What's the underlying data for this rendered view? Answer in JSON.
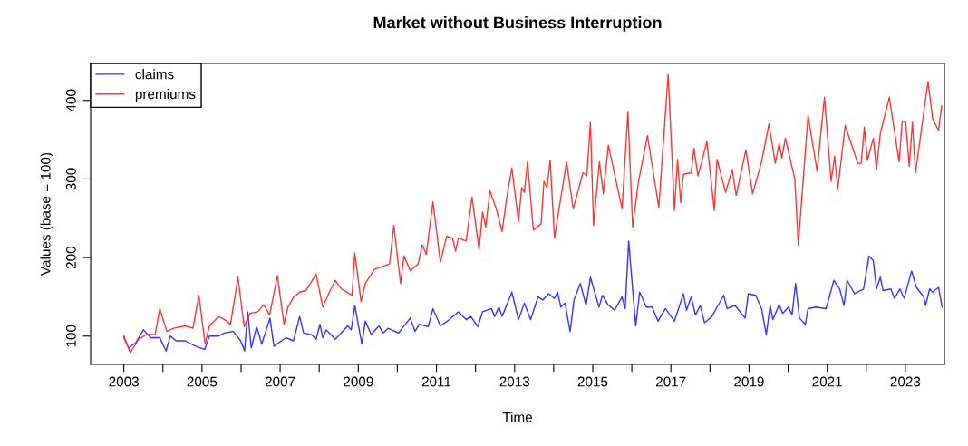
{
  "chart_data": {
    "type": "line",
    "title": "Market without Business Interruption",
    "xlabel": "Time",
    "ylabel": "Values (base = 100)",
    "xlim": [
      2002.15,
      2024.0
    ],
    "ylim": [
      64,
      447
    ],
    "xticks": [
      2003,
      {
        "value": 2004,
        "label": null
      },
      2005,
      {
        "value": 2006,
        "label": null
      },
      2007,
      {
        "value": 2008,
        "label": null
      },
      2009,
      {
        "value": 2010,
        "label": null
      },
      2011,
      {
        "value": 2012,
        "label": null
      },
      2013,
      {
        "value": 2014,
        "label": null
      },
      2015,
      {
        "value": 2016,
        "label": null
      },
      2017,
      {
        "value": 2018,
        "label": null
      },
      2019,
      {
        "value": 2020,
        "label": null
      },
      2021,
      {
        "value": 2022,
        "label": null
      },
      2023
    ],
    "yticks": [
      100,
      200,
      300,
      400
    ],
    "grid": false,
    "legend": "top left",
    "marker": "none",
    "line_style": "solid",
    "series": [
      {
        "name": "claims",
        "color": "#3333ff",
        "x": [
          2003.0,
          2003.12,
          2003.31,
          2003.5,
          2003.69,
          2003.92,
          2004.08,
          2004.19,
          2004.34,
          2004.57,
          2004.8,
          2005.07,
          2005.19,
          2005.42,
          2005.57,
          2005.8,
          2005.99,
          2006.09,
          2006.17,
          2006.26,
          2006.4,
          2006.53,
          2006.74,
          2006.84,
          2007.03,
          2007.15,
          2007.34,
          2007.5,
          2007.6,
          2007.8,
          2007.92,
          2008.02,
          2008.09,
          2008.18,
          2008.41,
          2008.73,
          2008.82,
          2008.91,
          2009.09,
          2009.18,
          2009.33,
          2009.53,
          2009.64,
          2009.76,
          2010.03,
          2010.33,
          2010.45,
          2010.56,
          2010.79,
          2010.91,
          2011.1,
          2011.33,
          2011.56,
          2011.76,
          2011.88,
          2012.06,
          2012.18,
          2012.41,
          2012.49,
          2012.6,
          2012.68,
          2012.93,
          2013.1,
          2013.25,
          2013.41,
          2013.6,
          2013.72,
          2013.87,
          2014.02,
          2014.1,
          2014.18,
          2014.29,
          2014.42,
          2014.52,
          2014.68,
          2014.83,
          2014.94,
          2015.06,
          2015.16,
          2015.25,
          2015.39,
          2015.56,
          2015.75,
          2015.83,
          2015.92,
          2016.01,
          2016.1,
          2016.2,
          2016.37,
          2016.52,
          2016.67,
          2016.86,
          2017.09,
          2017.32,
          2017.4,
          2017.52,
          2017.63,
          2017.75,
          2017.86,
          2018.05,
          2018.18,
          2018.35,
          2018.44,
          2018.64,
          2018.9,
          2018.98,
          2019.17,
          2019.32,
          2019.44,
          2019.54,
          2019.61,
          2019.77,
          2019.86,
          2020.01,
          2020.1,
          2020.19,
          2020.29,
          2020.44,
          2020.51,
          2020.71,
          2020.97,
          2021.17,
          2021.32,
          2021.43,
          2021.51,
          2021.7,
          2021.93,
          2022.07,
          2022.18,
          2022.26,
          2022.36,
          2022.43,
          2022.63,
          2022.72,
          2022.86,
          2022.97,
          2023.16,
          2023.28,
          2023.47,
          2023.52,
          2023.62,
          2023.7,
          2023.85,
          2023.94
        ],
        "values": [
          100,
          85,
          92,
          108,
          98,
          98,
          81,
          100,
          94,
          94,
          88,
          83,
          100,
          100,
          104,
          106,
          94,
          81,
          131,
          85,
          112,
          90,
          123,
          87,
          94,
          98,
          94,
          125,
          104,
          102,
          96,
          115,
          98,
          108,
          96,
          113,
          108,
          139,
          90,
          119,
          102,
          113,
          104,
          110,
          104,
          123,
          106,
          115,
          112,
          135,
          113,
          121,
          131,
          121,
          125,
          112,
          131,
          135,
          125,
          137,
          125,
          156,
          121,
          142,
          121,
          150,
          146,
          154,
          148,
          156,
          137,
          142,
          106,
          146,
          167,
          139,
          175,
          154,
          137,
          152,
          140,
          133,
          150,
          135,
          221,
          166,
          113,
          156,
          137,
          137,
          119,
          135,
          119,
          154,
          133,
          150,
          127,
          139,
          117,
          125,
          137,
          152,
          135,
          139,
          123,
          154,
          152,
          135,
          102,
          139,
          121,
          140,
          129,
          137,
          127,
          167,
          123,
          115,
          135,
          137,
          135,
          171,
          160,
          139,
          171,
          154,
          160,
          202,
          196,
          160,
          175,
          158,
          160,
          148,
          160,
          148,
          183,
          162,
          150,
          139,
          160,
          156,
          162,
          137
        ]
      },
      {
        "name": "premiums",
        "color": "#ff3333",
        "x": [
          2003.0,
          2003.17,
          2003.38,
          2003.57,
          2003.8,
          2003.92,
          2004.1,
          2004.27,
          2004.57,
          2004.77,
          2004.92,
          2005.08,
          2005.19,
          2005.31,
          2005.42,
          2005.58,
          2005.73,
          2005.92,
          2006.08,
          2006.23,
          2006.43,
          2006.58,
          2006.73,
          2006.93,
          2007.1,
          2007.2,
          2007.35,
          2007.5,
          2007.66,
          2007.92,
          2008.09,
          2008.26,
          2008.41,
          2008.57,
          2008.84,
          2008.91,
          2009.07,
          2009.18,
          2009.41,
          2009.64,
          2009.8,
          2009.91,
          2010.08,
          2010.17,
          2010.33,
          2010.53,
          2010.64,
          2010.74,
          2010.91,
          2011.1,
          2011.26,
          2011.41,
          2011.49,
          2011.56,
          2011.76,
          2011.91,
          2012.09,
          2012.18,
          2012.26,
          2012.37,
          2012.53,
          2012.68,
          2012.8,
          2012.93,
          2013.1,
          2013.18,
          2013.25,
          2013.33,
          2013.48,
          2013.68,
          2013.75,
          2013.83,
          2013.91,
          2014.02,
          2014.33,
          2014.5,
          2014.75,
          2014.85,
          2014.94,
          2015.02,
          2015.17,
          2015.27,
          2015.4,
          2015.75,
          2015.9,
          2016.02,
          2016.17,
          2016.4,
          2016.55,
          2016.69,
          2016.93,
          2017.09,
          2017.17,
          2017.25,
          2017.32,
          2017.52,
          2017.59,
          2017.69,
          2017.79,
          2017.92,
          2018.11,
          2018.18,
          2018.4,
          2018.57,
          2018.67,
          2018.92,
          2019.09,
          2019.32,
          2019.51,
          2019.67,
          2019.77,
          2019.84,
          2019.93,
          2020.17,
          2020.26,
          2020.51,
          2020.74,
          2020.93,
          2021.1,
          2021.19,
          2021.27,
          2021.46,
          2021.78,
          2021.87,
          2021.95,
          2022.03,
          2022.18,
          2022.26,
          2022.36,
          2022.59,
          2022.84,
          2022.92,
          2023.01,
          2023.1,
          2023.18,
          2023.26,
          2023.58,
          2023.7,
          2023.85,
          2023.93
        ],
        "values": [
          98,
          79,
          96,
          102,
          102,
          135,
          106,
          110,
          113,
          110,
          152,
          90,
          113,
          119,
          125,
          121,
          115,
          175,
          112,
          129,
          131,
          140,
          127,
          177,
          115,
          137,
          150,
          156,
          158,
          179,
          137,
          156,
          171,
          160,
          152,
          206,
          144,
          167,
          185,
          189,
          192,
          241,
          167,
          202,
          183,
          192,
          216,
          204,
          271,
          194,
          227,
          225,
          208,
          225,
          221,
          277,
          210,
          258,
          239,
          285,
          262,
          233,
          277,
          314,
          246,
          289,
          283,
          322,
          235,
          243,
          297,
          289,
          324,
          225,
          322,
          262,
          308,
          304,
          372,
          241,
          322,
          281,
          343,
          262,
          385,
          239,
          297,
          355,
          308,
          264,
          433,
          260,
          325,
          270,
          306,
          308,
          339,
          304,
          322,
          348,
          260,
          325,
          283,
          312,
          279,
          337,
          281,
          322,
          370,
          320,
          345,
          327,
          352,
          300,
          216,
          381,
          310,
          404,
          297,
          329,
          287,
          368,
          320,
          320,
          366,
          324,
          352,
          312,
          358,
          404,
          322,
          374,
          372,
          316,
          372,
          308,
          424,
          376,
          362,
          393
        ]
      }
    ]
  }
}
